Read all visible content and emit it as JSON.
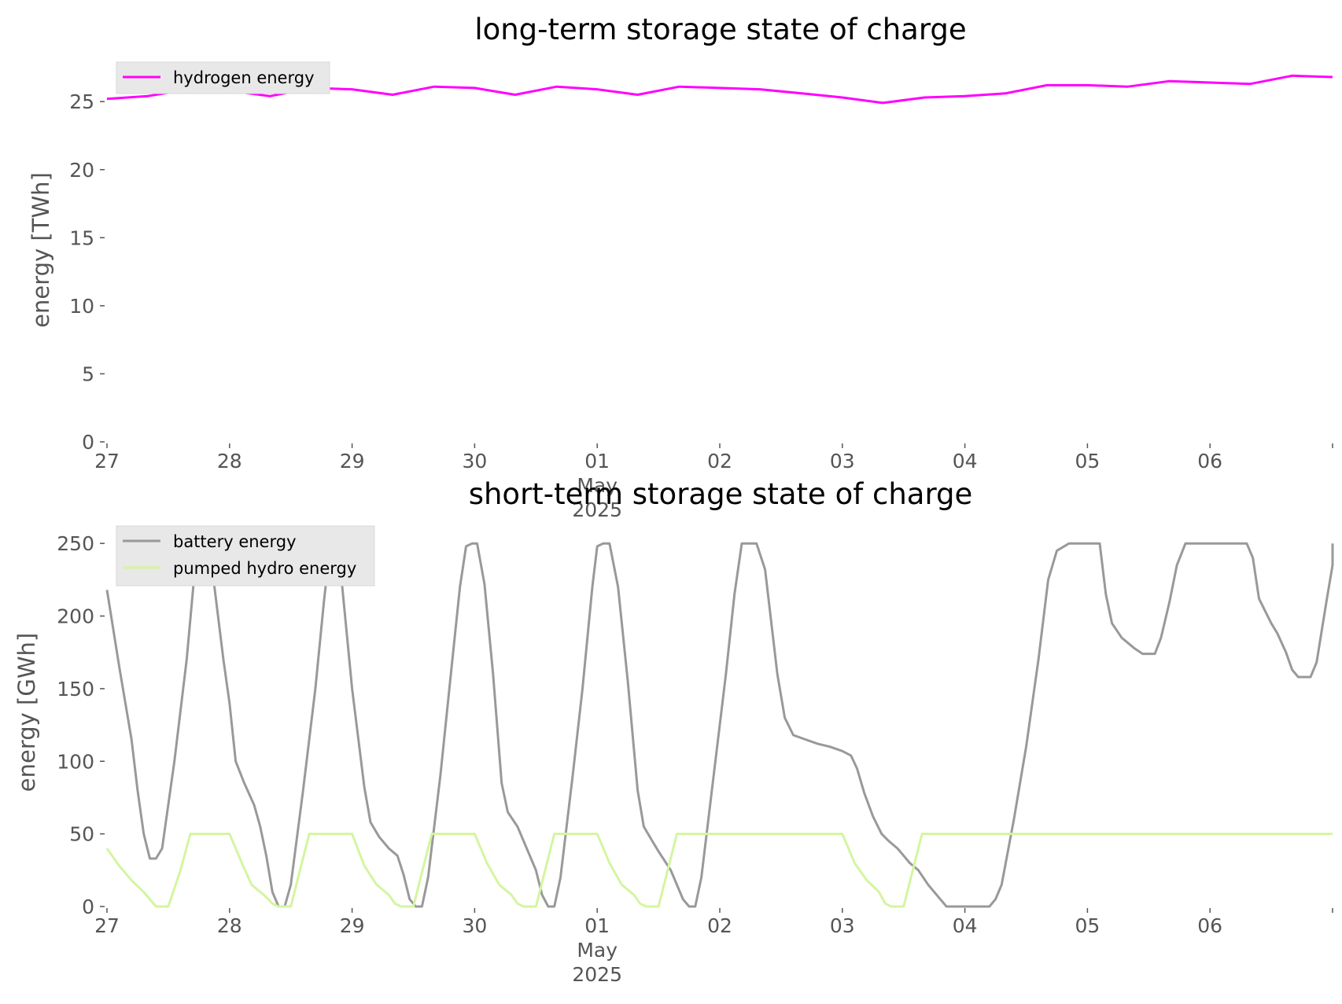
{
  "chart_data": [
    {
      "type": "line",
      "title": "long-term storage state of charge",
      "ylabel": "energy [TWh]",
      "ylim": [
        0,
        27.9
      ],
      "yticks": [
        "0",
        "5",
        "10",
        "15",
        "20",
        "25"
      ],
      "xlim_days": [
        0,
        10
      ],
      "xticks": [
        {
          "day": 0,
          "label": "27"
        },
        {
          "day": 1,
          "label": "28"
        },
        {
          "day": 2,
          "label": "29"
        },
        {
          "day": 3,
          "label": "30"
        },
        {
          "day": 4,
          "label": "01",
          "sub": [
            "May",
            "2025"
          ]
        },
        {
          "day": 5,
          "label": "02"
        },
        {
          "day": 6,
          "label": "03"
        },
        {
          "day": 7,
          "label": "04"
        },
        {
          "day": 8,
          "label": "05"
        },
        {
          "day": 9,
          "label": "06"
        },
        {
          "day": 10,
          "label": ""
        }
      ],
      "grid": false,
      "legend": "upper-left",
      "series": [
        {
          "name": "hydrogen energy",
          "color": "#ff00ff",
          "points": [
            [
              0.0,
              25.2
            ],
            [
              0.33,
              25.4
            ],
            [
              0.67,
              25.9
            ],
            [
              1.0,
              25.8
            ],
            [
              1.33,
              25.4
            ],
            [
              1.67,
              26.0
            ],
            [
              2.0,
              25.9
            ],
            [
              2.33,
              25.5
            ],
            [
              2.67,
              26.1
            ],
            [
              3.0,
              26.0
            ],
            [
              3.33,
              25.5
            ],
            [
              3.67,
              26.1
            ],
            [
              4.0,
              25.9
            ],
            [
              4.33,
              25.5
            ],
            [
              4.67,
              26.1
            ],
            [
              5.0,
              26.0
            ],
            [
              5.33,
              25.9
            ],
            [
              5.67,
              25.6
            ],
            [
              6.0,
              25.3
            ],
            [
              6.33,
              24.9
            ],
            [
              6.67,
              25.3
            ],
            [
              7.0,
              25.4
            ],
            [
              7.33,
              25.6
            ],
            [
              7.67,
              26.2
            ],
            [
              8.0,
              26.2
            ],
            [
              8.33,
              26.1
            ],
            [
              8.67,
              26.5
            ],
            [
              9.0,
              26.4
            ],
            [
              9.33,
              26.3
            ],
            [
              9.67,
              26.9
            ],
            [
              10.0,
              26.8
            ]
          ]
        }
      ]
    },
    {
      "type": "line",
      "title": "short-term storage state of charge",
      "ylabel": "energy [GWh]",
      "ylim": [
        0,
        262
      ],
      "yticks": [
        "0",
        "50",
        "100",
        "150",
        "200",
        "250"
      ],
      "xlim_days": [
        0,
        10
      ],
      "xticks": [
        {
          "day": 0,
          "label": "27"
        },
        {
          "day": 1,
          "label": "28"
        },
        {
          "day": 2,
          "label": "29"
        },
        {
          "day": 3,
          "label": "30"
        },
        {
          "day": 4,
          "label": "01",
          "sub": [
            "May",
            "2025"
          ]
        },
        {
          "day": 5,
          "label": "02"
        },
        {
          "day": 6,
          "label": "03"
        },
        {
          "day": 7,
          "label": "04"
        },
        {
          "day": 8,
          "label": "05"
        },
        {
          "day": 9,
          "label": "06"
        },
        {
          "day": 10,
          "label": ""
        }
      ],
      "grid": false,
      "legend": "upper-left",
      "series": [
        {
          "name": "battery energy",
          "color": "#999999",
          "points": [
            [
              0.0,
              218
            ],
            [
              0.1,
              165
            ],
            [
              0.2,
              115
            ],
            [
              0.25,
              80
            ],
            [
              0.3,
              50
            ],
            [
              0.35,
              33
            ],
            [
              0.4,
              33
            ],
            [
              0.45,
              40
            ],
            [
              0.55,
              100
            ],
            [
              0.65,
              170
            ],
            [
              0.72,
              235
            ],
            [
              0.77,
              250
            ],
            [
              0.82,
              250
            ],
            [
              0.87,
              225
            ],
            [
              0.95,
              170
            ],
            [
              1.0,
              140
            ],
            [
              1.05,
              100
            ],
            [
              1.12,
              85
            ],
            [
              1.2,
              70
            ],
            [
              1.25,
              55
            ],
            [
              1.3,
              35
            ],
            [
              1.35,
              10
            ],
            [
              1.4,
              0
            ],
            [
              1.45,
              0
            ],
            [
              1.5,
              15
            ],
            [
              1.6,
              80
            ],
            [
              1.7,
              150
            ],
            [
              1.77,
              210
            ],
            [
              1.82,
              248
            ],
            [
              1.87,
              250
            ],
            [
              1.92,
              220
            ],
            [
              2.0,
              150
            ],
            [
              2.1,
              82
            ],
            [
              2.15,
              58
            ],
            [
              2.22,
              48
            ],
            [
              2.3,
              40
            ],
            [
              2.37,
              35
            ],
            [
              2.42,
              22
            ],
            [
              2.47,
              5
            ],
            [
              2.52,
              0
            ],
            [
              2.57,
              0
            ],
            [
              2.62,
              20
            ],
            [
              2.72,
              90
            ],
            [
              2.8,
              155
            ],
            [
              2.88,
              220
            ],
            [
              2.93,
              248
            ],
            [
              2.98,
              250
            ],
            [
              3.02,
              250
            ],
            [
              3.08,
              222
            ],
            [
              3.15,
              160
            ],
            [
              3.22,
              85
            ],
            [
              3.27,
              65
            ],
            [
              3.35,
              55
            ],
            [
              3.45,
              35
            ],
            [
              3.5,
              25
            ],
            [
              3.55,
              8
            ],
            [
              3.6,
              0
            ],
            [
              3.65,
              0
            ],
            [
              3.7,
              20
            ],
            [
              3.8,
              90
            ],
            [
              3.88,
              150
            ],
            [
              3.96,
              220
            ],
            [
              4.0,
              248
            ],
            [
              4.05,
              250
            ],
            [
              4.1,
              250
            ],
            [
              4.17,
              220
            ],
            [
              4.25,
              155
            ],
            [
              4.33,
              80
            ],
            [
              4.38,
              55
            ],
            [
              4.45,
              45
            ],
            [
              4.5,
              38
            ],
            [
              4.6,
              25
            ],
            [
              4.65,
              15
            ],
            [
              4.7,
              5
            ],
            [
              4.75,
              0
            ],
            [
              4.8,
              0
            ],
            [
              4.85,
              20
            ],
            [
              4.95,
              90
            ],
            [
              5.05,
              160
            ],
            [
              5.12,
              215
            ],
            [
              5.18,
              250
            ],
            [
              5.3,
              250
            ],
            [
              5.37,
              232
            ],
            [
              5.47,
              160
            ],
            [
              5.53,
              130
            ],
            [
              5.6,
              118
            ],
            [
              5.7,
              115
            ],
            [
              5.8,
              112
            ],
            [
              5.9,
              110
            ],
            [
              6.0,
              107
            ],
            [
              6.07,
              104
            ],
            [
              6.12,
              95
            ],
            [
              6.18,
              78
            ],
            [
              6.25,
              62
            ],
            [
              6.32,
              50
            ],
            [
              6.38,
              45
            ],
            [
              6.45,
              40
            ],
            [
              6.5,
              35
            ],
            [
              6.55,
              30
            ],
            [
              6.62,
              25
            ],
            [
              6.7,
              15
            ],
            [
              6.8,
              5
            ],
            [
              6.85,
              0
            ],
            [
              7.0,
              0
            ],
            [
              7.15,
              0
            ],
            [
              7.2,
              0
            ],
            [
              7.25,
              5
            ],
            [
              7.3,
              15
            ],
            [
              7.4,
              60
            ],
            [
              7.5,
              110
            ],
            [
              7.6,
              170
            ],
            [
              7.68,
              225
            ],
            [
              7.75,
              245
            ],
            [
              7.85,
              250
            ],
            [
              8.0,
              250
            ],
            [
              8.1,
              250
            ],
            [
              8.15,
              215
            ],
            [
              8.2,
              195
            ],
            [
              8.28,
              185
            ],
            [
              8.38,
              178
            ],
            [
              8.45,
              174
            ],
            [
              8.55,
              174
            ],
            [
              8.6,
              185
            ],
            [
              8.67,
              210
            ],
            [
              8.73,
              235
            ],
            [
              8.8,
              250
            ],
            [
              9.0,
              250
            ],
            [
              9.2,
              250
            ],
            [
              9.3,
              250
            ],
            [
              9.35,
              240
            ],
            [
              9.4,
              212
            ],
            [
              9.5,
              195
            ],
            [
              9.55,
              188
            ],
            [
              9.62,
              175
            ],
            [
              9.67,
              163
            ],
            [
              9.72,
              158
            ],
            [
              9.82,
              158
            ],
            [
              9.87,
              168
            ],
            [
              9.95,
              210
            ],
            [
              10.0,
              235
            ],
            [
              10.05,
              248
            ],
            [
              10.12,
              250
            ],
            [
              10.2,
              250
            ]
          ]
        },
        {
          "name": "pumped hydro energy",
          "color": "#d4f5a0",
          "points": [
            [
              0.0,
              40
            ],
            [
              0.1,
              28
            ],
            [
              0.2,
              18
            ],
            [
              0.3,
              10
            ],
            [
              0.35,
              5
            ],
            [
              0.4,
              0
            ],
            [
              0.5,
              0
            ],
            [
              0.6,
              25
            ],
            [
              0.68,
              50
            ],
            [
              1.0,
              50
            ],
            [
              1.1,
              30
            ],
            [
              1.18,
              15
            ],
            [
              1.28,
              8
            ],
            [
              1.35,
              2
            ],
            [
              1.4,
              0
            ],
            [
              1.5,
              0
            ],
            [
              1.65,
              50
            ],
            [
              2.0,
              50
            ],
            [
              2.1,
              28
            ],
            [
              2.2,
              15
            ],
            [
              2.3,
              8
            ],
            [
              2.35,
              2
            ],
            [
              2.4,
              0
            ],
            [
              2.5,
              0
            ],
            [
              2.65,
              50
            ],
            [
              3.0,
              50
            ],
            [
              3.1,
              30
            ],
            [
              3.2,
              15
            ],
            [
              3.3,
              8
            ],
            [
              3.35,
              2
            ],
            [
              3.4,
              0
            ],
            [
              3.5,
              0
            ],
            [
              3.65,
              50
            ],
            [
              4.0,
              50
            ],
            [
              4.1,
              30
            ],
            [
              4.2,
              15
            ],
            [
              4.3,
              8
            ],
            [
              4.35,
              2
            ],
            [
              4.4,
              0
            ],
            [
              4.5,
              0
            ],
            [
              4.65,
              50
            ],
            [
              5.0,
              50
            ],
            [
              6.0,
              50
            ],
            [
              6.1,
              30
            ],
            [
              6.2,
              18
            ],
            [
              6.3,
              10
            ],
            [
              6.35,
              2
            ],
            [
              6.4,
              0
            ],
            [
              6.5,
              0
            ],
            [
              6.65,
              50
            ],
            [
              7.0,
              50
            ],
            [
              10.0,
              50
            ]
          ]
        }
      ]
    }
  ]
}
